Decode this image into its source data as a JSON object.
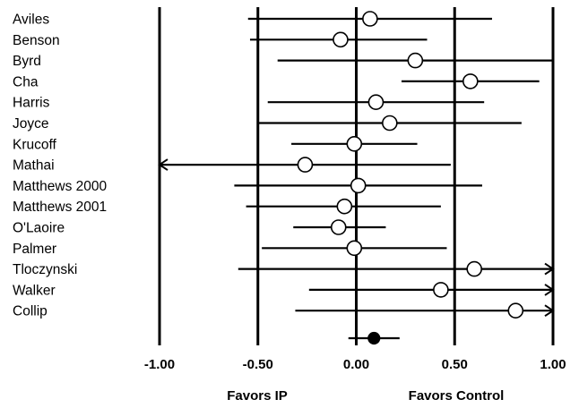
{
  "chart_data": {
    "type": "forest",
    "title": "",
    "xlabel": "",
    "ylabel": "",
    "xlim": [
      -1.0,
      1.0
    ],
    "x_ticks": [
      "-1.00",
      "-0.50",
      "0.00",
      "0.50",
      "1.00"
    ],
    "x_tick_values": [
      -1.0,
      -0.5,
      0.0,
      0.5,
      1.0
    ],
    "grid": true,
    "favors_left": "Favors IP",
    "favors_right": "Favors Control",
    "studies": [
      {
        "name": "Aviles",
        "estimate": 0.07,
        "lower": -0.55,
        "upper": 0.69
      },
      {
        "name": "Benson",
        "estimate": -0.08,
        "lower": -0.54,
        "upper": 0.36
      },
      {
        "name": "Byrd",
        "estimate": 0.3,
        "lower": -0.4,
        "upper": 1.0
      },
      {
        "name": "Cha",
        "estimate": 0.58,
        "lower": 0.23,
        "upper": 0.93
      },
      {
        "name": "Harris",
        "estimate": 0.1,
        "lower": -0.45,
        "upper": 0.65
      },
      {
        "name": "Joyce",
        "estimate": 0.17,
        "lower": -0.5,
        "upper": 0.84
      },
      {
        "name": "Krucoff",
        "estimate": -0.01,
        "lower": -0.33,
        "upper": 0.31
      },
      {
        "name": "Mathai",
        "estimate": -0.26,
        "lower": -1.0,
        "upper": 0.48,
        "arrow_left": true
      },
      {
        "name": "Matthews 2000",
        "estimate": 0.01,
        "lower": -0.62,
        "upper": 0.64
      },
      {
        "name": "Matthews 2001",
        "estimate": -0.06,
        "lower": -0.56,
        "upper": 0.43
      },
      {
        "name": "O'Laoire",
        "estimate": -0.09,
        "lower": -0.32,
        "upper": 0.15
      },
      {
        "name": "Palmer",
        "estimate": -0.01,
        "lower": -0.48,
        "upper": 0.46
      },
      {
        "name": "Tloczynski",
        "estimate": 0.6,
        "lower": -0.6,
        "upper": 1.0,
        "arrow_right": true
      },
      {
        "name": "Walker",
        "estimate": 0.43,
        "lower": -0.24,
        "upper": 1.0,
        "arrow_right": true
      },
      {
        "name": "Collip",
        "estimate": 0.81,
        "lower": -0.31,
        "upper": 1.0,
        "arrow_right": true
      }
    ],
    "pooled": {
      "name": "",
      "estimate": 0.09,
      "lower": -0.04,
      "upper": 0.22
    }
  }
}
